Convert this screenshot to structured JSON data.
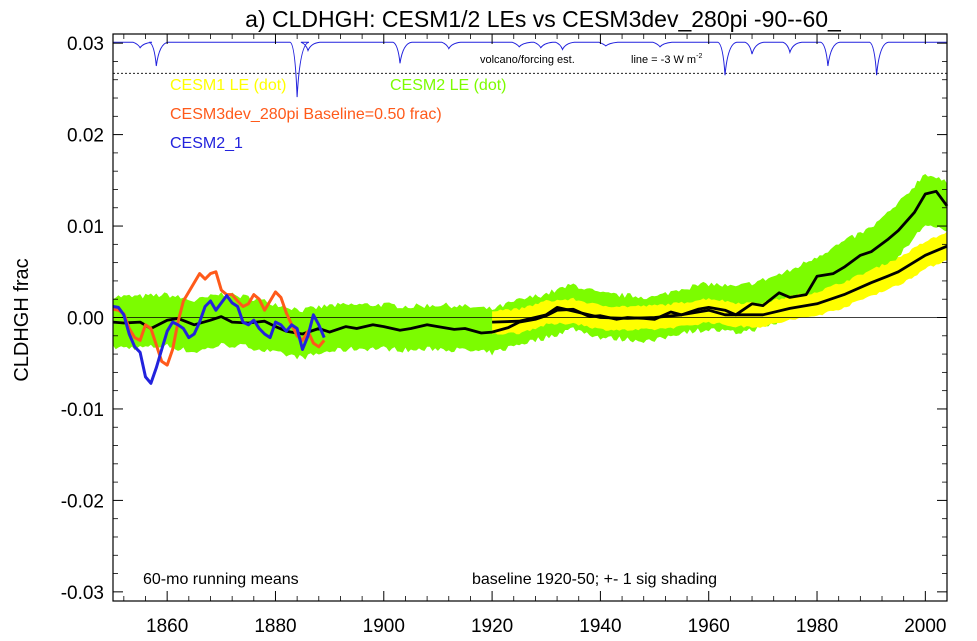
{
  "chart_data": {
    "type": "line",
    "title": "a) CLDHGH: CESM1/2 LEs vs CESM3dev_280pi -90--60_",
    "ylabel": "CLDHGH frac",
    "xlabel": "",
    "xlim": [
      1850,
      2004
    ],
    "ylim": [
      -0.031,
      0.031
    ],
    "x_ticks": [
      1860,
      1880,
      1900,
      1920,
      1940,
      1960,
      1980,
      2000
    ],
    "x_tick_labels": [
      "1860",
      "1880",
      "1900",
      "1920",
      "1940",
      "1960",
      "1980",
      "2000"
    ],
    "y_ticks": [
      -0.03,
      -0.02,
      -0.01,
      0.0,
      0.01,
      0.02,
      0.03
    ],
    "y_tick_labels": [
      "-0.03",
      "-0.02",
      "-0.01",
      "0.00",
      "0.01",
      "0.02",
      "0.03"
    ],
    "zero_line": 0.0,
    "grid": false,
    "legend": [
      {
        "label": "CESM1 LE (dot)",
        "color": "#ffff00"
      },
      {
        "label": "CESM2 LE (dot)",
        "color": "#7cfc00"
      },
      {
        "label": "CESM3dev_280pi Baseline=0.50 frac)",
        "color": "#ff5a1a"
      },
      {
        "label": "CESM2_1",
        "color": "#2222dd"
      }
    ],
    "annotations": {
      "running_means": "60-mo running means",
      "baseline": "baseline 1920-50; +- 1 sig shading",
      "volcano": "volcano/forcing est.",
      "volcano_line": "line = -3 W m",
      "volcano_line_sup": "-2"
    },
    "volcano_reference": 0.0267,
    "volcano_top": 0.0301,
    "volcano_dips": [
      {
        "x": 1855,
        "y": 0.0295
      },
      {
        "x": 1858,
        "y": 0.0275
      },
      {
        "x": 1884,
        "y": 0.0241
      },
      {
        "x": 1886,
        "y": 0.0292
      },
      {
        "x": 1903,
        "y": 0.0278
      },
      {
        "x": 1912,
        "y": 0.0294
      },
      {
        "x": 1925,
        "y": 0.0296
      },
      {
        "x": 1929,
        "y": 0.0295
      },
      {
        "x": 1933,
        "y": 0.0293
      },
      {
        "x": 1941,
        "y": 0.0297
      },
      {
        "x": 1951,
        "y": 0.0296
      },
      {
        "x": 1963,
        "y": 0.0265
      },
      {
        "x": 1968,
        "y": 0.0288
      },
      {
        "x": 1975,
        "y": 0.029
      },
      {
        "x": 1982,
        "y": 0.0275
      },
      {
        "x": 1991,
        "y": 0.0265
      }
    ],
    "cesm2_le": {
      "x": [
        1850,
        1855,
        1860,
        1865,
        1870,
        1875,
        1880,
        1885,
        1890,
        1895,
        1900,
        1905,
        1910,
        1915,
        1920,
        1925,
        1930,
        1935,
        1940,
        1945,
        1950,
        1955,
        1960,
        1965,
        1970,
        1975,
        1980,
        1985,
        1990,
        1995,
        2000,
        2004
      ],
      "mean": [
        -0.0005,
        -0.0005,
        -0.0003,
        -0.001,
        -0.0002,
        -0.0005,
        -0.0012,
        -0.0018,
        -0.0012,
        -0.001,
        -0.001,
        -0.0012,
        -0.001,
        -0.0012,
        -0.0015,
        -0.0005,
        0.0002,
        0.0012,
        0.0002,
        0.0,
        -0.0002,
        0.0008,
        0.0012,
        0.0008,
        0.0015,
        0.0025,
        0.004,
        0.0055,
        0.007,
        0.0095,
        0.013,
        0.012
      ],
      "sd": [
        0.0028,
        0.0028,
        0.0028,
        0.0028,
        0.0028,
        0.0027,
        0.0027,
        0.0026,
        0.0025,
        0.0024,
        0.0024,
        0.0024,
        0.0024,
        0.0024,
        0.0024,
        0.0024,
        0.0024,
        0.0024,
        0.0024,
        0.0024,
        0.0024,
        0.0024,
        0.0025,
        0.0025,
        0.0026,
        0.0026,
        0.0027,
        0.0028,
        0.0028,
        0.0029,
        0.0028,
        0.0027
      ]
    },
    "cesm1_le": {
      "x": [
        1920,
        1925,
        1930,
        1935,
        1940,
        1945,
        1950,
        1955,
        1960,
        1965,
        1970,
        1975,
        1980,
        1985,
        1990,
        1995,
        2000,
        2004
      ],
      "mean": [
        -0.0005,
        -0.0004,
        0.0005,
        0.0007,
        0.0,
        -0.0001,
        0.0,
        0.0003,
        0.0008,
        0.0003,
        0.0003,
        0.001,
        0.0015,
        0.0025,
        0.0038,
        0.005,
        0.0068,
        0.0078
      ],
      "sd": [
        0.0013,
        0.0013,
        0.0013,
        0.0013,
        0.0013,
        0.0013,
        0.0013,
        0.0013,
        0.0013,
        0.0013,
        0.0013,
        0.0013,
        0.0013,
        0.0014,
        0.0014,
        0.0015,
        0.0015,
        0.0015
      ]
    },
    "cesm1_ensemble_mean": {
      "x": [
        1920,
        1925,
        1930,
        1932,
        1935,
        1940,
        1945,
        1950,
        1955,
        1960,
        1963,
        1965,
        1970,
        1975,
        1980,
        1985,
        1990,
        1993,
        1995,
        2000,
        2004
      ],
      "y": [
        -0.0005,
        -0.0004,
        0.0003,
        0.0011,
        0.0007,
        0.0,
        -0.0001,
        0.0,
        0.0003,
        0.0008,
        0.0003,
        0.0003,
        0.0003,
        0.001,
        0.0015,
        0.0025,
        0.0038,
        0.0045,
        0.005,
        0.0068,
        0.0078
      ]
    },
    "cesm2_ensemble_mean": {
      "x": [
        1850,
        1852,
        1855,
        1857,
        1860,
        1862,
        1865,
        1868,
        1870,
        1872,
        1875,
        1878,
        1880,
        1882,
        1885,
        1888,
        1890,
        1893,
        1895,
        1898,
        1900,
        1903,
        1905,
        1908,
        1910,
        1913,
        1915,
        1918,
        1920,
        1923,
        1925,
        1928,
        1930,
        1932,
        1935,
        1938,
        1940,
        1943,
        1945,
        1948,
        1950,
        1953,
        1955,
        1958,
        1960,
        1963,
        1965,
        1968,
        1970,
        1973,
        1975,
        1978,
        1980,
        1983,
        1985,
        1988,
        1990,
        1993,
        1995,
        1998,
        2000,
        2002,
        2004
      ],
      "y": [
        -0.0005,
        -0.0006,
        -0.0005,
        -0.0012,
        -0.0003,
        -0.0001,
        -0.0008,
        -0.0003,
        0.0001,
        -0.0005,
        -0.0006,
        -0.0004,
        -0.001,
        -0.0015,
        -0.0018,
        -0.0012,
        -0.0016,
        -0.001,
        -0.0012,
        -0.0008,
        -0.001,
        -0.0014,
        -0.0012,
        -0.0008,
        -0.001,
        -0.0013,
        -0.0012,
        -0.0017,
        -0.0016,
        -0.0011,
        -0.0005,
        -0.0002,
        0.0002,
        0.0008,
        0.0009,
        0.0001,
        0.0002,
        -0.0002,
        0.0,
        -0.0001,
        -0.0002,
        0.0006,
        0.0003,
        0.0009,
        0.0011,
        0.0008,
        0.0003,
        0.0015,
        0.0013,
        0.0027,
        0.0022,
        0.0025,
        0.0045,
        0.0048,
        0.0055,
        0.0068,
        0.0072,
        0.0085,
        0.0095,
        0.0115,
        0.0135,
        0.0138,
        0.0122
      ]
    },
    "series": [
      {
        "name": "CESM3dev_280pi Baseline=0.50 frac)",
        "color": "#ff5a1a",
        "x": [
          1850,
          1851,
          1852,
          1853,
          1854,
          1855,
          1856,
          1857,
          1858,
          1859,
          1860,
          1861,
          1862,
          1863,
          1864,
          1865,
          1866,
          1867,
          1868,
          1869,
          1870,
          1871,
          1872,
          1873,
          1874,
          1875,
          1876,
          1877,
          1878,
          1879,
          1880,
          1881,
          1882,
          1883,
          1884,
          1885,
          1886,
          1887,
          1888,
          1889
        ],
        "y": [
          0.0009,
          0.0008,
          0.0004,
          -0.0012,
          -0.0022,
          -0.0025,
          -0.0008,
          -0.0012,
          -0.003,
          -0.0048,
          -0.0052,
          -0.0035,
          -0.0005,
          0.0018,
          0.0028,
          0.0038,
          0.0048,
          0.0042,
          0.0048,
          0.005,
          0.003,
          0.0025,
          0.0025,
          0.0018,
          0.0012,
          0.0015,
          0.0025,
          0.002,
          0.0008,
          0.0018,
          0.0028,
          0.0022,
          0.0005,
          -0.0008,
          -0.002,
          -0.0025,
          -0.0015,
          -0.0028,
          -0.0032,
          -0.0025
        ]
      },
      {
        "name": "CESM2_1",
        "color": "#2222dd",
        "x": [
          1850,
          1851,
          1852,
          1853,
          1854,
          1855,
          1856,
          1857,
          1858,
          1859,
          1860,
          1861,
          1862,
          1863,
          1864,
          1865,
          1866,
          1867,
          1868,
          1869,
          1870,
          1871,
          1872,
          1873,
          1874,
          1875,
          1876,
          1877,
          1878,
          1879,
          1880,
          1881,
          1882,
          1883,
          1884,
          1885,
          1886,
          1887,
          1888,
          1889
        ],
        "y": [
          0.0012,
          0.0011,
          0.0003,
          -0.0018,
          -0.0032,
          -0.0038,
          -0.0065,
          -0.0072,
          -0.0055,
          -0.0035,
          -0.0015,
          -0.0005,
          -0.0008,
          -0.0012,
          -0.0022,
          -0.0018,
          -0.0005,
          0.0012,
          0.0018,
          0.0008,
          0.0016,
          0.0024,
          0.0016,
          0.0012,
          -0.0005,
          -0.0008,
          -0.0003,
          -0.0012,
          -0.0018,
          -0.0022,
          -0.0005,
          -0.0008,
          -0.0015,
          -0.0008,
          -0.0012,
          -0.0035,
          -0.002,
          0.0003,
          -0.0008,
          -0.0022
        ]
      }
    ]
  }
}
